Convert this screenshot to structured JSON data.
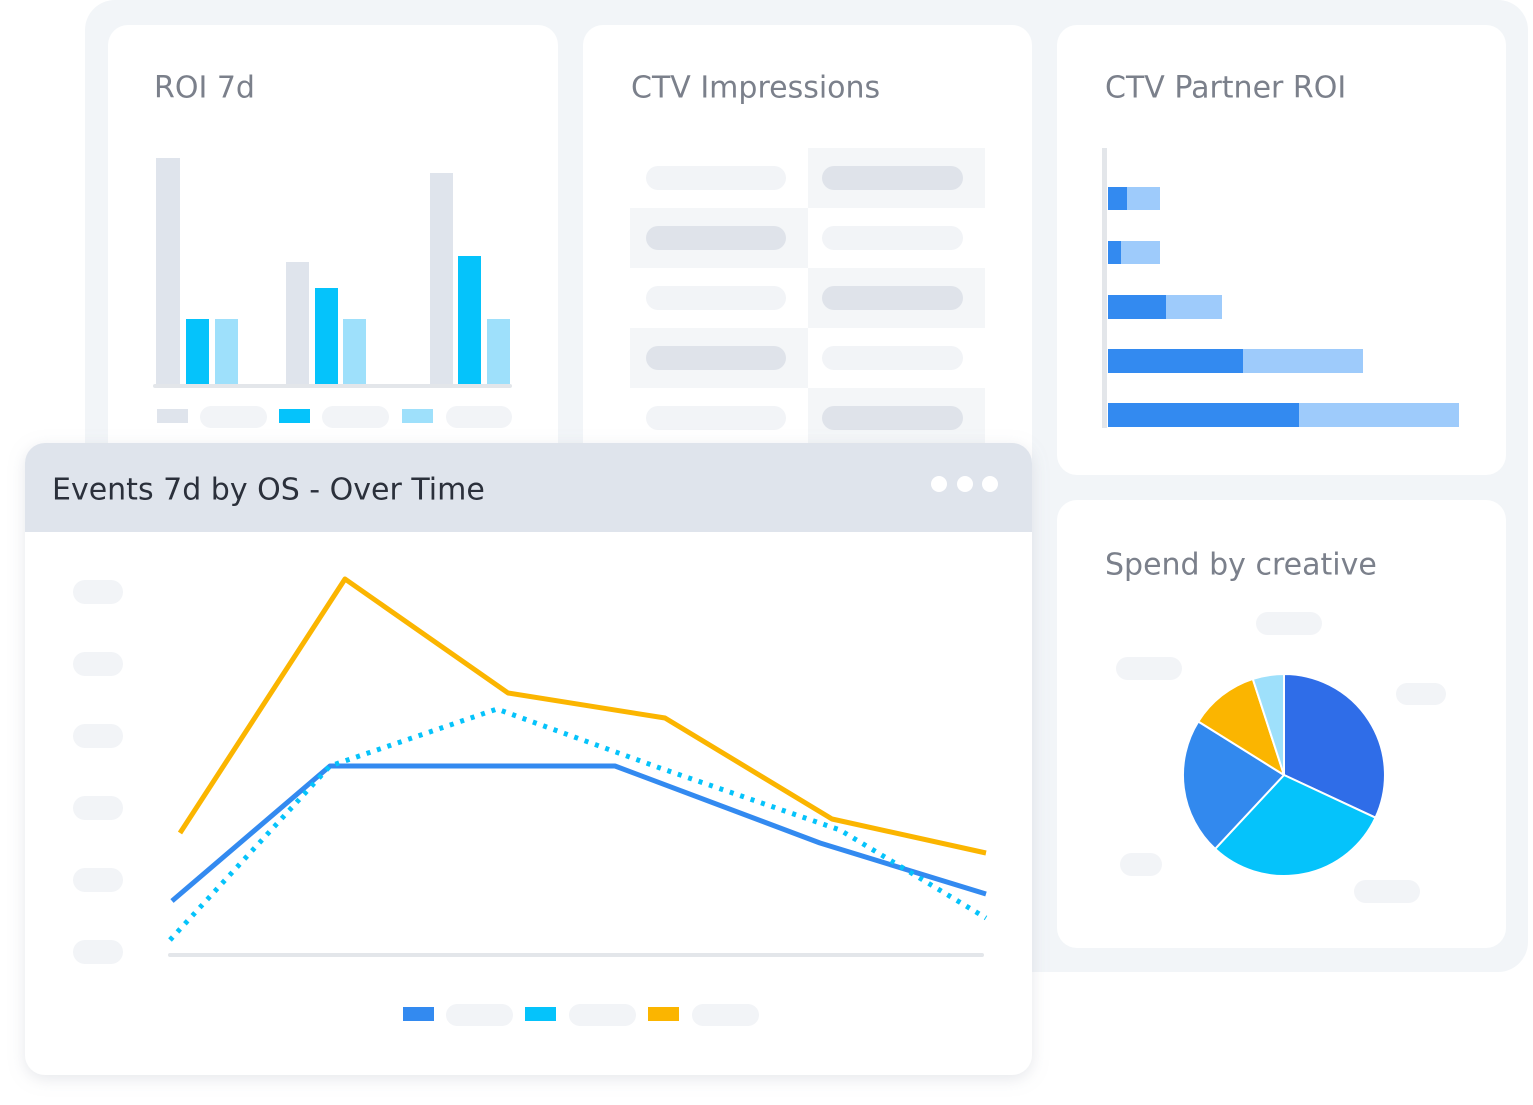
{
  "cards": {
    "roi": {
      "title": "ROI 7d"
    },
    "impressions": {
      "title": "CTV Impressions"
    },
    "partner_roi": {
      "title": "CTV Partner ROI"
    },
    "spend": {
      "title": "Spend by creative"
    },
    "events": {
      "title": "Events 7d by OS - Over Time"
    }
  }
}
